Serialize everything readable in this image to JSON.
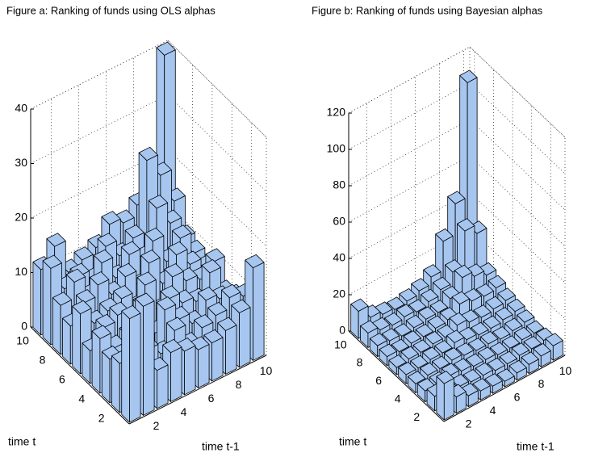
{
  "chart_data": [
    {
      "type": "bar3d",
      "title": "Figure a: Ranking of funds using OLS alphas",
      "xlabel": "time t-1",
      "ylabel": "time t",
      "color": "#a6c6f0",
      "xlim": [
        0.5,
        10.5
      ],
      "ylim": [
        0.5,
        10.5
      ],
      "zlim": [
        0,
        40
      ],
      "xticks": [
        2,
        4,
        6,
        8,
        10
      ],
      "yticks": [
        2,
        4,
        6,
        8,
        10
      ],
      "zticks": [
        0,
        10,
        20,
        30,
        40
      ],
      "values": [
        [
          19,
          20,
          7,
          9,
          8,
          7,
          7,
          8,
          10,
          17
        ],
        [
          9,
          13,
          9,
          7,
          10,
          6,
          8,
          9,
          11,
          10
        ],
        [
          8,
          6,
          11,
          5,
          12,
          9,
          7,
          10,
          9,
          8
        ],
        [
          10,
          7,
          8,
          12,
          6,
          11,
          9,
          8,
          12,
          7
        ],
        [
          6,
          9,
          10,
          8,
          13,
          7,
          12,
          10,
          9,
          11
        ],
        [
          11,
          8,
          9,
          10,
          7,
          14,
          9,
          13,
          10,
          8
        ],
        [
          7,
          10,
          12,
          9,
          11,
          8,
          15,
          10,
          13,
          9
        ],
        [
          9,
          12,
          8,
          13,
          9,
          12,
          10,
          18,
          14,
          10
        ],
        [
          14,
          9,
          10,
          8,
          13,
          10,
          12,
          25,
          21,
          15
        ],
        [
          12,
          15,
          9,
          10,
          11,
          14,
          13,
          15,
          18,
          40
        ]
      ]
    },
    {
      "type": "bar3d",
      "title": "Figure b: Ranking of funds using Bayesian alphas",
      "xlabel": "time t-1",
      "ylabel": "time t",
      "color": "#a6c6f0",
      "xlim": [
        0.5,
        10.5
      ],
      "ylim": [
        0.5,
        10.5
      ],
      "zlim": [
        0,
        120
      ],
      "xticks": [
        2,
        4,
        6,
        8,
        10
      ],
      "yticks": [
        2,
        4,
        6,
        8,
        10
      ],
      "zticks": [
        0,
        20,
        40,
        60,
        80,
        100,
        120
      ],
      "values": [
        [
          20,
          9,
          6,
          5,
          4,
          3,
          4,
          5,
          6,
          8
        ],
        [
          8,
          7,
          6,
          5,
          5,
          4,
          4,
          5,
          5,
          6
        ],
        [
          6,
          6,
          7,
          6,
          5,
          5,
          4,
          4,
          5,
          5
        ],
        [
          5,
          6,
          6,
          7,
          6,
          5,
          5,
          4,
          5,
          6
        ],
        [
          5,
          5,
          6,
          6,
          8,
          6,
          5,
          5,
          6,
          7
        ],
        [
          4,
          5,
          5,
          6,
          6,
          9,
          7,
          6,
          7,
          8
        ],
        [
          5,
          4,
          5,
          5,
          6,
          7,
          12,
          10,
          9,
          10
        ],
        [
          6,
          5,
          4,
          5,
          6,
          6,
          10,
          18,
          15,
          12
        ],
        [
          8,
          6,
          5,
          6,
          5,
          7,
          10,
          16,
          35,
          30
        ],
        [
          15,
          8,
          6,
          5,
          6,
          8,
          12,
          28,
          45,
          108
        ]
      ]
    }
  ]
}
